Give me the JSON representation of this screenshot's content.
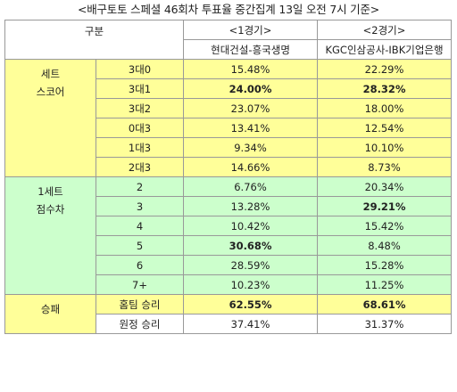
{
  "title": "<배구토토 스페셜 46회차 투표율 중간집계 13일 오전 7시 기준>",
  "header": {
    "category": "구분",
    "game1": "<1경기>",
    "game2": "<2경기>",
    "match1": "현대건설-흥국생명",
    "match2": "KGC인삼공사-IBK기업은행"
  },
  "groups": [
    {
      "label_lines": [
        "세트",
        "스코어"
      ],
      "color": "#ffff99",
      "rows": [
        {
          "label": "3대0",
          "v1": "15.48%",
          "v2": "22.29%",
          "b1": false,
          "b2": false
        },
        {
          "label": "3대1",
          "v1": "24.00%",
          "v2": "28.32%",
          "b1": true,
          "b2": true
        },
        {
          "label": "3대2",
          "v1": "23.07%",
          "v2": "18.00%",
          "b1": false,
          "b2": false
        },
        {
          "label": "0대3",
          "v1": "13.41%",
          "v2": "12.54%",
          "b1": false,
          "b2": false
        },
        {
          "label": "1대3",
          "v1": "9.34%",
          "v2": "10.10%",
          "b1": false,
          "b2": false
        },
        {
          "label": "2대3",
          "v1": "14.66%",
          "v2": "8.73%",
          "b1": false,
          "b2": false
        }
      ]
    },
    {
      "label_lines": [
        "1세트",
        "점수차"
      ],
      "color": "#ccffcc",
      "rows": [
        {
          "label": "2",
          "v1": "6.76%",
          "v2": "20.34%",
          "b1": false,
          "b2": false
        },
        {
          "label": "3",
          "v1": "13.28%",
          "v2": "29.21%",
          "b1": false,
          "b2": true
        },
        {
          "label": "4",
          "v1": "10.42%",
          "v2": "15.42%",
          "b1": false,
          "b2": false
        },
        {
          "label": "5",
          "v1": "30.68%",
          "v2": "8.48%",
          "b1": true,
          "b2": false
        },
        {
          "label": "6",
          "v1": "28.59%",
          "v2": "15.28%",
          "b1": false,
          "b2": false
        },
        {
          "label": "7+",
          "v1": "10.23%",
          "v2": "11.25%",
          "b1": false,
          "b2": false
        }
      ]
    },
    {
      "label_lines": [
        "승패"
      ],
      "color": "#ffff99",
      "rows": [
        {
          "label": "홈팀 승리",
          "v1": "62.55%",
          "v2": "68.61%",
          "b1": true,
          "b2": true
        },
        {
          "label": "원정 승리",
          "v1": "37.41%",
          "v2": "31.37%",
          "b1": false,
          "b2": false
        }
      ]
    }
  ]
}
